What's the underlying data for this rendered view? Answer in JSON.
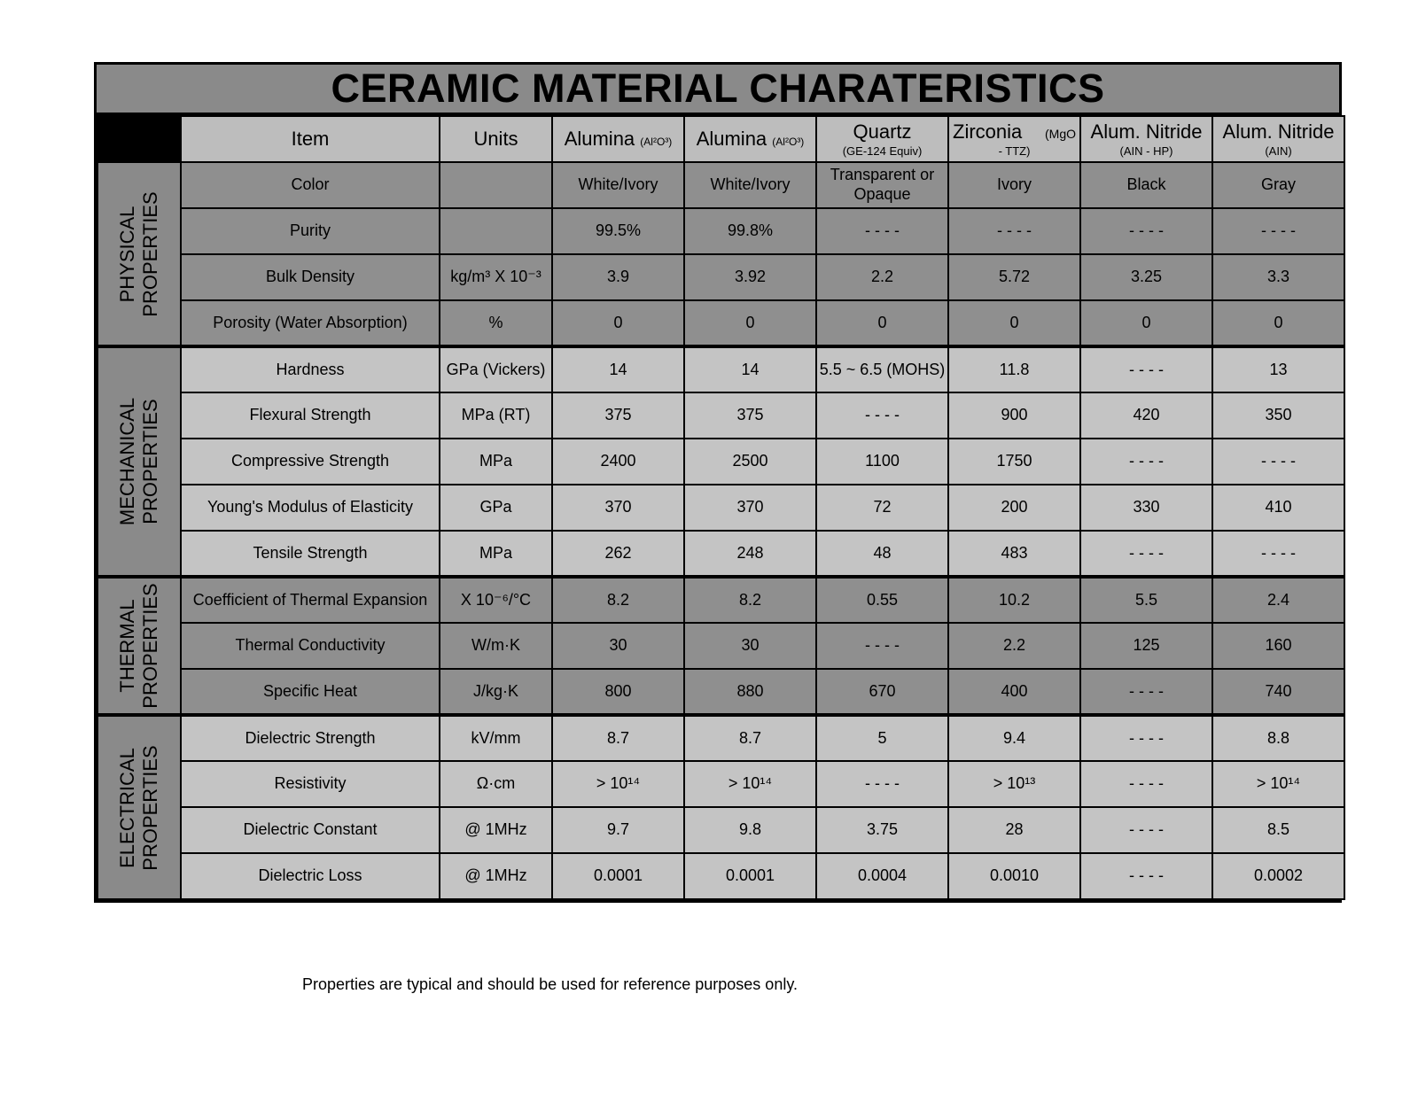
{
  "title": "CERAMIC MATERIAL CHARATERISTICS",
  "header": {
    "item": "Item",
    "units": "Units",
    "materials": [
      {
        "name": "Alumina",
        "formula": "(Al²O³)",
        "sub": ""
      },
      {
        "name": "Alumina",
        "formula": "(Al²O³)",
        "sub": ""
      },
      {
        "name": "Quartz",
        "formula": "",
        "sub": "(GE-124 Equiv)"
      },
      {
        "name": "Zirconia",
        "formula": "(MgO",
        "sub": "- TTZ)"
      },
      {
        "name": "Alum. Nitride",
        "formula": "",
        "sub": "(AIN - HP)"
      },
      {
        "name": "Alum. Nitride",
        "formula": "",
        "sub": "(AIN)"
      }
    ]
  },
  "sections": [
    {
      "name": "PHYSICAL PROPERTIES",
      "rows": [
        {
          "item": "Color",
          "unit": "",
          "values": [
            "White/Ivory",
            "White/Ivory",
            "Transparent or Opaque",
            "Ivory",
            "Black",
            "Gray"
          ]
        },
        {
          "item": "Purity",
          "unit": "",
          "values": [
            "99.5%",
            "99.8%",
            "- - - -",
            "- - - -",
            "- - - -",
            "- - - -"
          ]
        },
        {
          "item": "Bulk Density",
          "unit": "kg/m³ X 10⁻³",
          "values": [
            "3.9",
            "3.92",
            "2.2",
            "5.72",
            "3.25",
            "3.3"
          ]
        },
        {
          "item": "Porosity (Water Absorption)",
          "unit": "%",
          "values": [
            "0",
            "0",
            "0",
            "0",
            "0",
            "0"
          ]
        }
      ]
    },
    {
      "name": "MECHANICAL PROPERTIES",
      "rows": [
        {
          "item": "Hardness",
          "unit": "GPa (Vickers)",
          "values": [
            "14",
            "14",
            "5.5 ~ 6.5 (MOHS)",
            "11.8",
            "- - - -",
            "13"
          ]
        },
        {
          "item": "Flexural Strength",
          "unit": "MPa (RT)",
          "values": [
            "375",
            "375",
            "- - - -",
            "900",
            "420",
            "350"
          ]
        },
        {
          "item": "Compressive Strength",
          "unit": "MPa",
          "values": [
            "2400",
            "2500",
            "1100",
            "1750",
            "- - - -",
            "- - - -"
          ]
        },
        {
          "item": "Young's Modulus of Elasticity",
          "unit": "GPa",
          "values": [
            "370",
            "370",
            "72",
            "200",
            "330",
            "410"
          ]
        },
        {
          "item": "Tensile Strength",
          "unit": "MPa",
          "values": [
            "262",
            "248",
            "48",
            "483",
            "- - - -",
            "- - - -"
          ]
        }
      ]
    },
    {
      "name": "THERMAL PROPERTIES",
      "rows": [
        {
          "item": "Coefficient of Thermal Expansion",
          "unit": "X 10⁻⁶/°C",
          "values": [
            "8.2",
            "8.2",
            "0.55",
            "10.2",
            "5.5",
            "2.4"
          ]
        },
        {
          "item": "Thermal Conductivity",
          "unit": "W/m·K",
          "values": [
            "30",
            "30",
            "- - - -",
            "2.2",
            "125",
            "160"
          ]
        },
        {
          "item": "Specific Heat",
          "unit": "J/kg·K",
          "values": [
            "800",
            "880",
            "670",
            "400",
            "- - - -",
            "740"
          ]
        }
      ]
    },
    {
      "name": "ELECTRICAL PROPERTIES",
      "rows": [
        {
          "item": "Dielectric Strength",
          "unit": "kV/mm",
          "values": [
            "8.7",
            "8.7",
            "5",
            "9.4",
            "- - - -",
            "8.8"
          ]
        },
        {
          "item": "Resistivity",
          "unit": "Ω·cm",
          "values": [
            "> 10¹⁴",
            "> 10¹⁴",
            "- - - -",
            "> 10¹³",
            "- - - -",
            "> 10¹⁴"
          ]
        },
        {
          "item": "Dielectric Constant",
          "unit": "@ 1MHz",
          "values": [
            "9.7",
            "9.8",
            "3.75",
            "28",
            "- - - -",
            "8.5"
          ]
        },
        {
          "item": "Dielectric Loss",
          "unit": "@ 1MHz",
          "values": [
            "0.0001",
            "0.0001",
            "0.0004",
            "0.0010",
            "- - - -",
            "0.0002"
          ]
        }
      ]
    }
  ],
  "footnote": "Properties are typical and should be used for reference purposes only.",
  "colors": {
    "dark_row": "#8f8f8f",
    "light_row": "#c4c4c4",
    "header": "#bdbdbd",
    "title_bar": "#8a8a8a"
  }
}
